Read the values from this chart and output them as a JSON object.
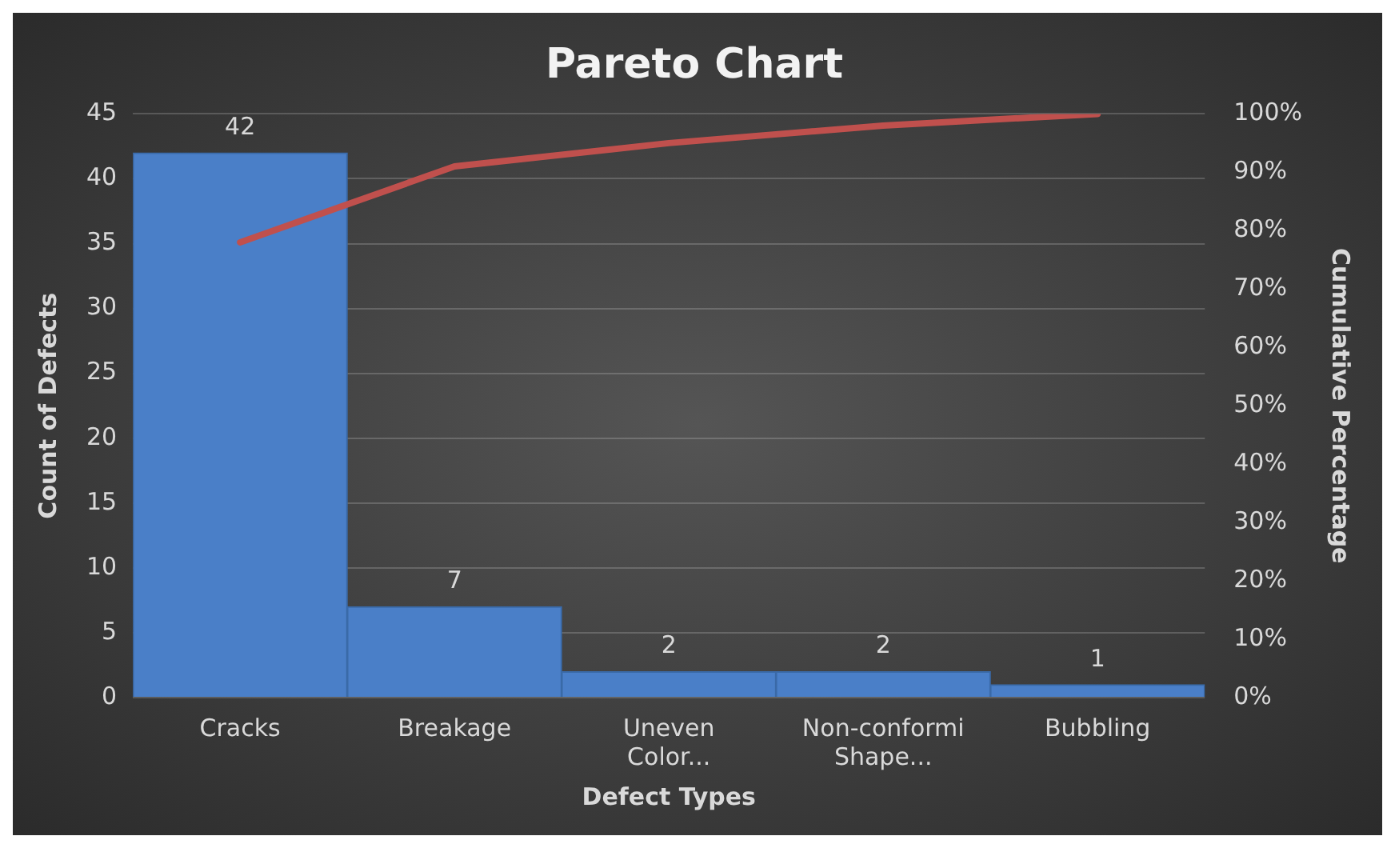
{
  "chart_data": {
    "type": "bar",
    "title": "Pareto Chart",
    "xlabel": "Defect Types",
    "ylabel": "Count of Defects",
    "y2label": "Cumulative Percentage",
    "categories": [
      "Cracks",
      "Breakage",
      "Uneven Color...",
      "Non-conformi Shape...",
      "Bubbling"
    ],
    "series": [
      {
        "color": "#4a7fc8",
        "values": [
          42,
          7,
          2,
          2,
          1
        ],
        "value_labels": [
          "42",
          "7",
          "2",
          "2",
          "1"
        ]
      },
      {
        "type": "line",
        "axis": "y2",
        "color": "#c0504d",
        "values": [
          78,
          91,
          95,
          98,
          100
        ],
        "marker": "none"
      }
    ],
    "ylim": [
      0,
      45
    ],
    "yticks": [
      0,
      5,
      10,
      15,
      20,
      25,
      30,
      35,
      40,
      45
    ],
    "y2lim": [
      0,
      100
    ],
    "y2ticks": [
      {
        "value": 0,
        "label": "0%"
      },
      {
        "value": 10,
        "label": "10%"
      },
      {
        "value": 20,
        "label": "20%"
      },
      {
        "value": 30,
        "label": "30%"
      },
      {
        "value": 40,
        "label": "40%"
      },
      {
        "value": 50,
        "label": "50%"
      },
      {
        "value": 60,
        "label": "60%"
      },
      {
        "value": 70,
        "label": "70%"
      },
      {
        "value": 80,
        "label": "80%"
      },
      {
        "value": 90,
        "label": "90%"
      },
      {
        "value": 100,
        "label": "100%"
      }
    ],
    "grid": "y",
    "legend": false
  }
}
